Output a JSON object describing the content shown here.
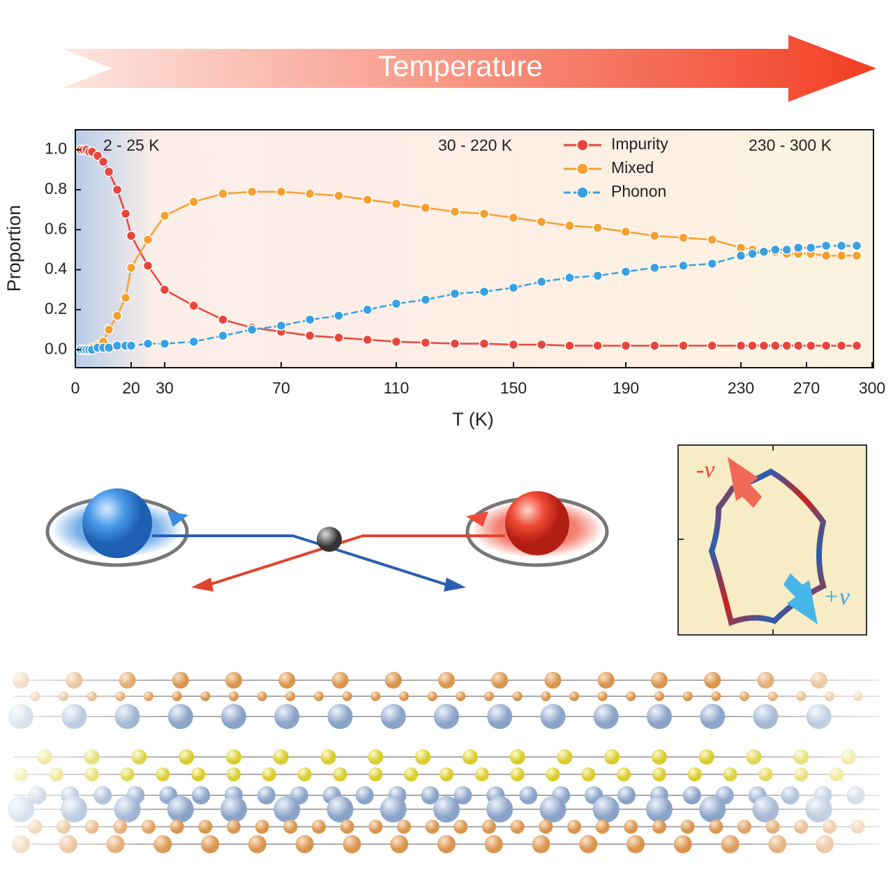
{
  "banner": "Temperature",
  "inset": {
    "minus_label": "-v",
    "plus_label": "+v"
  },
  "chart_data": {
    "type": "line",
    "xlabel": "T (K)",
    "ylabel": "Proportion",
    "annotations": [
      "2 - 25 K",
      "30 - 220 K",
      "230 - 300 K"
    ],
    "legend": "upper right",
    "grid": false,
    "x": [
      2,
      3,
      4,
      5,
      6,
      8,
      10,
      12,
      15,
      18,
      20,
      25,
      30,
      40,
      50,
      60,
      70,
      80,
      90,
      100,
      110,
      120,
      130,
      140,
      150,
      160,
      170,
      180,
      190,
      200,
      210,
      220,
      230,
      237,
      244,
      251,
      258,
      265,
      272,
      279,
      286,
      293
    ],
    "series": [
      {
        "name": "Impurity",
        "color": "#e8453c",
        "values": [
          1.0,
          1.0,
          1.0,
          0.99,
          0.99,
          0.97,
          0.94,
          0.89,
          0.8,
          0.68,
          0.57,
          0.42,
          0.3,
          0.22,
          0.15,
          0.11,
          0.09,
          0.07,
          0.06,
          0.05,
          0.04,
          0.035,
          0.03,
          0.03,
          0.025,
          0.025,
          0.02,
          0.02,
          0.02,
          0.02,
          0.02,
          0.02,
          0.02,
          0.02,
          0.02,
          0.02,
          0.02,
          0.02,
          0.02,
          0.02,
          0.02,
          0.02
        ]
      },
      {
        "name": "Mixed",
        "color": "#f5a030",
        "values": [
          0,
          0,
          0,
          0,
          0.01,
          0.02,
          0.04,
          0.1,
          0.17,
          0.26,
          0.41,
          0.55,
          0.67,
          0.74,
          0.78,
          0.79,
          0.79,
          0.78,
          0.77,
          0.75,
          0.73,
          0.71,
          0.69,
          0.68,
          0.66,
          0.64,
          0.62,
          0.61,
          0.59,
          0.57,
          0.56,
          0.55,
          0.51,
          0.5,
          0.49,
          0.49,
          0.48,
          0.48,
          0.48,
          0.47,
          0.47,
          0.47
        ]
      },
      {
        "name": "Phonon",
        "color": "#3aa0e0",
        "values": [
          0,
          0,
          0,
          0,
          0,
          0.01,
          0.01,
          0.01,
          0.02,
          0.02,
          0.02,
          0.03,
          0.03,
          0.04,
          0.07,
          0.1,
          0.12,
          0.15,
          0.17,
          0.2,
          0.23,
          0.25,
          0.28,
          0.29,
          0.31,
          0.34,
          0.36,
          0.37,
          0.39,
          0.41,
          0.42,
          0.43,
          0.47,
          0.48,
          0.49,
          0.5,
          0.5,
          0.51,
          0.51,
          0.52,
          0.52,
          0.52
        ]
      }
    ],
    "xlim": [
      0,
      300
    ],
    "xticks": [
      0,
      20,
      30,
      70,
      110,
      150,
      190,
      230,
      270,
      300
    ],
    "ylim": [
      -0.09,
      1.1
    ],
    "yticks": [
      {
        "value": 0,
        "label": "0.0"
      },
      0.2,
      0.4,
      0.6,
      0.8,
      {
        "value": 1,
        "label": "1.0"
      }
    ]
  }
}
